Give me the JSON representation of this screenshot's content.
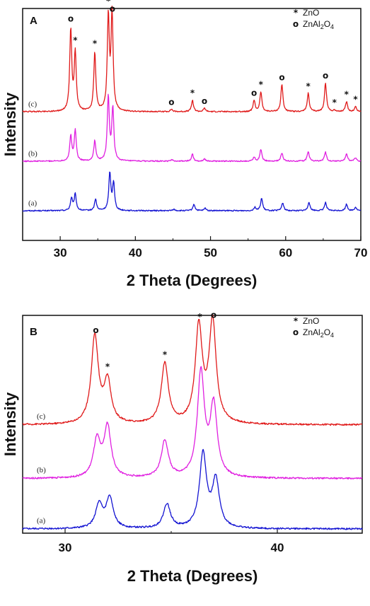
{
  "chart_data": [
    {
      "type": "line",
      "panel": "A",
      "xlabel": "2 Theta (Degrees)",
      "ylabel": "Intensity",
      "xlim": [
        25,
        70
      ],
      "xticks": [
        30,
        40,
        50,
        60,
        70
      ],
      "legend": {
        "placement": "top-right",
        "entries": [
          {
            "symbol": "*",
            "label": "ZnO"
          },
          {
            "symbol": "o",
            "label": "ZnAl",
            "sub": "2",
            "label2": "O",
            "sub2": "4"
          }
        ]
      },
      "series": [
        {
          "name": "(a)",
          "color": "#1414d2",
          "baseline": 0.0,
          "peaks": [
            [
              31.5,
              0.25
            ],
            [
              32.0,
              0.33
            ],
            [
              34.7,
              0.23
            ],
            [
              36.6,
              0.75
            ],
            [
              37.1,
              0.55
            ],
            [
              45.1,
              0.03
            ],
            [
              47.8,
              0.13
            ],
            [
              49.3,
              0.05
            ],
            [
              55.9,
              0.07
            ],
            [
              56.8,
              0.25
            ],
            [
              59.6,
              0.16
            ],
            [
              63.1,
              0.18
            ],
            [
              65.3,
              0.17
            ],
            [
              68.1,
              0.13
            ],
            [
              69.3,
              0.07
            ]
          ]
        },
        {
          "name": "(b)",
          "color": "#e020e0",
          "baseline": 1.0,
          "peaks": [
            [
              31.4,
              0.5
            ],
            [
              32.0,
              0.62
            ],
            [
              34.6,
              0.41
            ],
            [
              36.4,
              1.3
            ],
            [
              37.0,
              1.05
            ],
            [
              44.9,
              0.03
            ],
            [
              47.6,
              0.14
            ],
            [
              49.2,
              0.05
            ],
            [
              55.8,
              0.08
            ],
            [
              56.7,
              0.24
            ],
            [
              59.5,
              0.17
            ],
            [
              63.0,
              0.2
            ],
            [
              65.3,
              0.18
            ],
            [
              68.1,
              0.15
            ],
            [
              69.3,
              0.07
            ]
          ]
        },
        {
          "name": "(c)",
          "color": "#e01a1a",
          "baseline": 2.0,
          "peaks": [
            [
              31.4,
              1.65
            ],
            [
              32.0,
              1.18
            ],
            [
              34.6,
              1.2
            ],
            [
              36.4,
              1.9
            ],
            [
              36.9,
              1.95
            ],
            [
              44.8,
              0.05
            ],
            [
              47.6,
              0.23
            ],
            [
              49.2,
              0.07
            ],
            [
              55.8,
              0.22
            ],
            [
              56.7,
              0.4
            ],
            [
              59.5,
              0.55
            ],
            [
              63.0,
              0.37
            ],
            [
              65.3,
              0.58
            ],
            [
              66.5,
              0.03
            ],
            [
              68.1,
              0.2
            ],
            [
              69.3,
              0.1
            ]
          ]
        }
      ],
      "annotations": [
        {
          "symbol": "o",
          "x": 31.4
        },
        {
          "symbol": "*",
          "x": 32.0
        },
        {
          "symbol": "*",
          "x": 34.6
        },
        {
          "symbol": "*",
          "x": 36.4
        },
        {
          "symbol": "o",
          "x": 36.95
        },
        {
          "symbol": "o",
          "x": 44.8
        },
        {
          "symbol": "*",
          "x": 47.6
        },
        {
          "symbol": "o",
          "x": 49.2
        },
        {
          "symbol": "o",
          "x": 55.8
        },
        {
          "symbol": "*",
          "x": 56.7
        },
        {
          "symbol": "o",
          "x": 59.5
        },
        {
          "symbol": "*",
          "x": 63.0
        },
        {
          "symbol": "o",
          "x": 65.3
        },
        {
          "symbol": "*",
          "x": 66.5
        },
        {
          "symbol": "*",
          "x": 68.1
        },
        {
          "symbol": "*",
          "x": 69.3
        }
      ]
    },
    {
      "type": "line",
      "panel": "B",
      "xlabel": "2 Theta (Degrees)",
      "ylabel": "Intensity",
      "xlim": [
        28,
        44
      ],
      "xticks": [
        30,
        40
      ],
      "legend": {
        "placement": "top-right",
        "entries": [
          {
            "symbol": "*",
            "label": "ZnO"
          },
          {
            "symbol": "o",
            "label": "ZnAl",
            "sub": "2",
            "label2": "O",
            "sub2": "4"
          }
        ]
      },
      "series": [
        {
          "name": "(a)",
          "color": "#1414d2",
          "baseline": 0.0,
          "peaks": [
            [
              31.6,
              0.35
            ],
            [
              32.1,
              0.45
            ],
            [
              34.8,
              0.36
            ],
            [
              36.5,
              1.1
            ],
            [
              37.1,
              0.7
            ]
          ]
        },
        {
          "name": "(b)",
          "color": "#e020e0",
          "baseline": 0.75,
          "peaks": [
            [
              31.5,
              0.55
            ],
            [
              32.0,
              0.75
            ],
            [
              34.7,
              0.55
            ],
            [
              36.4,
              1.55
            ],
            [
              37.0,
              1.05
            ]
          ]
        },
        {
          "name": "(c)",
          "color": "#e01a1a",
          "baseline": 1.55,
          "peaks": [
            [
              31.4,
              1.3
            ],
            [
              32.0,
              0.62
            ],
            [
              34.7,
              0.9
            ],
            [
              36.3,
              1.42
            ],
            [
              36.95,
              1.5
            ]
          ]
        }
      ],
      "annotations": [
        {
          "symbol": "o",
          "x": 31.45
        },
        {
          "symbol": "*",
          "x": 32.0
        },
        {
          "symbol": "*",
          "x": 34.7
        },
        {
          "symbol": "*",
          "x": 36.35
        },
        {
          "symbol": "o",
          "x": 37.0
        }
      ]
    }
  ]
}
